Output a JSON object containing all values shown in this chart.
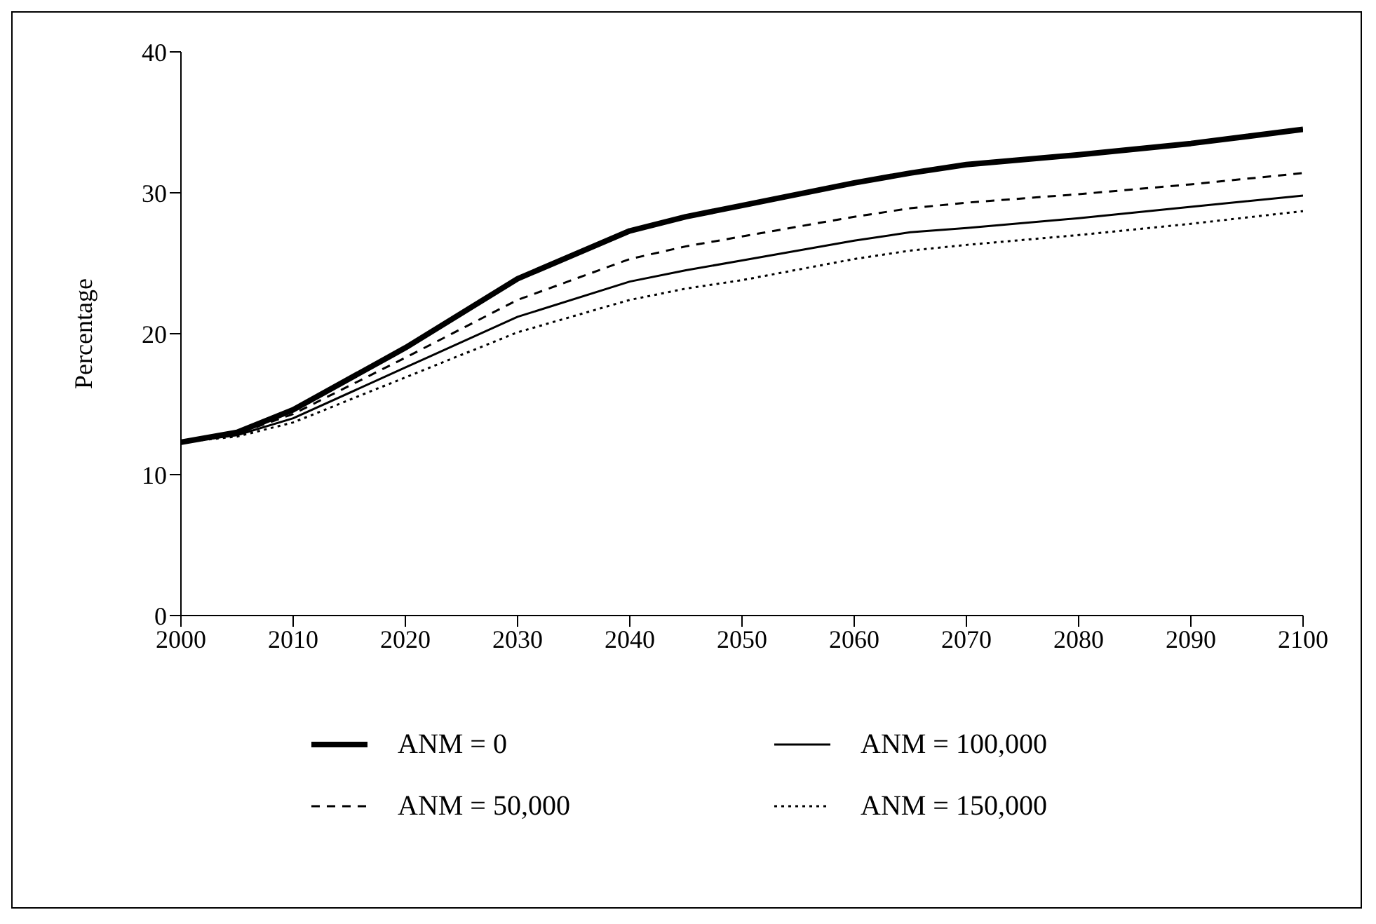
{
  "chart_data": {
    "type": "line",
    "ylabel": "Percentage",
    "x": [
      2000,
      2005,
      2010,
      2020,
      2030,
      2040,
      2045,
      2050,
      2060,
      2065,
      2070,
      2080,
      2090,
      2100
    ],
    "xlim": [
      2000,
      2100
    ],
    "xticks": [
      2000,
      2010,
      2020,
      2030,
      2040,
      2050,
      2060,
      2070,
      2080,
      2090,
      2100
    ],
    "ylim": [
      0,
      40
    ],
    "yticks": [
      0,
      10,
      20,
      30,
      40
    ],
    "grid": false,
    "legend": "bottom",
    "marker": "none",
    "series": [
      {
        "name": "ANM = 0",
        "color": "#000000",
        "line_style": "solid",
        "values": [
          12.3,
          13.0,
          14.6,
          19.0,
          23.9,
          27.3,
          28.3,
          29.1,
          30.7,
          31.4,
          32.0,
          32.7,
          33.5,
          34.5
        ]
      },
      {
        "name": "ANM = 50,000",
        "color": "#000000",
        "line_style": "dashed",
        "values": [
          12.3,
          12.9,
          14.3,
          18.3,
          22.4,
          25.3,
          26.2,
          26.9,
          28.3,
          28.9,
          29.3,
          29.9,
          30.6,
          31.4
        ]
      },
      {
        "name": "ANM = 100,000",
        "color": "#000000",
        "line_style": "solid",
        "values": [
          12.3,
          12.8,
          14.0,
          17.6,
          21.2,
          23.7,
          24.5,
          25.2,
          26.6,
          27.2,
          27.5,
          28.2,
          29.0,
          29.8
        ]
      },
      {
        "name": "ANM = 150,000",
        "color": "#000000",
        "line_style": "dotted",
        "values": [
          12.3,
          12.7,
          13.7,
          16.9,
          20.1,
          22.4,
          23.2,
          23.8,
          25.3,
          25.9,
          26.3,
          27.0,
          27.8,
          28.7
        ]
      }
    ]
  }
}
